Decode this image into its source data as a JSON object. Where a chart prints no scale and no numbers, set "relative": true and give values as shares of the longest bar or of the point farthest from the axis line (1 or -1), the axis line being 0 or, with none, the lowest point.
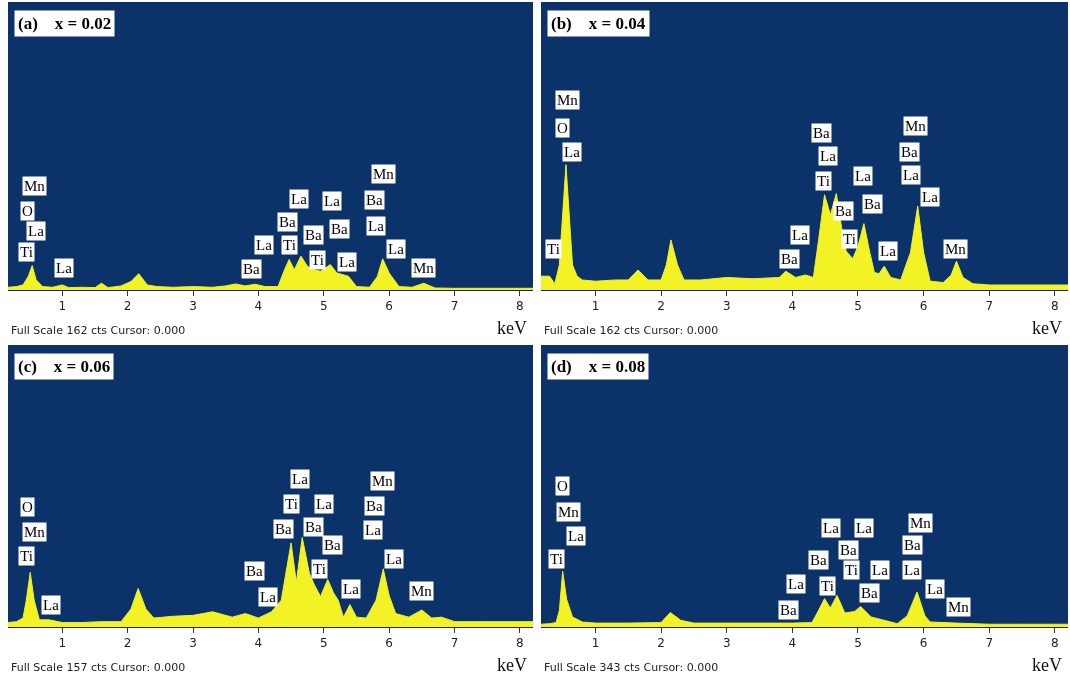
{
  "chart_data": [
    {
      "type": "area",
      "title": "(a)    x = 0.02",
      "xlabel": "keV",
      "relative": true,
      "color": "#f2f224",
      "grid": false,
      "xlim": [
        0.17,
        8.2
      ],
      "xticks": [
        1,
        2,
        3,
        4,
        5,
        6,
        7,
        8
      ],
      "x": [
        0.17,
        0.3,
        0.4,
        0.48,
        0.54,
        0.6,
        0.7,
        0.85,
        1.0,
        1.1,
        1.3,
        1.5,
        1.6,
        1.7,
        1.9,
        2.05,
        2.17,
        2.3,
        2.45,
        2.7,
        3.0,
        3.3,
        3.5,
        3.65,
        3.8,
        3.95,
        4.1,
        4.3,
        4.4,
        4.47,
        4.55,
        4.65,
        4.75,
        4.85,
        4.95,
        5.1,
        5.2,
        5.3,
        5.38,
        5.5,
        5.7,
        5.82,
        5.9,
        6.0,
        6.15,
        6.35,
        6.53,
        6.7,
        7.0,
        7.5,
        8.0,
        8.2
      ],
      "values": [
        0.08,
        0.1,
        0.15,
        0.4,
        0.72,
        0.3,
        0.1,
        0.08,
        0.15,
        0.07,
        0.08,
        0.07,
        0.2,
        0.07,
        0.12,
        0.25,
        0.48,
        0.15,
        0.1,
        0.08,
        0.1,
        0.08,
        0.12,
        0.18,
        0.12,
        0.17,
        0.1,
        0.1,
        0.6,
        0.9,
        0.6,
        1.0,
        0.7,
        0.6,
        0.55,
        0.75,
        0.5,
        0.45,
        0.4,
        0.1,
        0.08,
        0.4,
        0.92,
        0.5,
        0.1,
        0.08,
        0.2,
        0.06,
        0.05,
        0.05,
        0.05,
        0.05
      ],
      "annotations": [
        "Mn",
        "O",
        "La",
        "Ti",
        "La",
        "Ba",
        "La",
        "Ti",
        "Ba",
        "La",
        "La",
        "Ba",
        "Ba",
        "Ti",
        "La",
        "Mn",
        "Ba",
        "La",
        "La",
        "Mn",
        "Full Scale 162 cts Cursor: 0.000"
      ]
    },
    {
      "type": "area",
      "title": "(b)    x = 0.04",
      "xlabel": "keV",
      "relative": true,
      "color": "#f2f224",
      "grid": false,
      "xlim": [
        0.17,
        8.2
      ],
      "xticks": [
        1,
        2,
        3,
        4,
        5,
        6,
        7,
        8
      ],
      "x": [
        0.17,
        0.3,
        0.38,
        0.45,
        0.5,
        0.55,
        0.6,
        0.65,
        0.72,
        0.8,
        1.0,
        1.3,
        1.5,
        1.65,
        1.8,
        2.0,
        2.08,
        2.15,
        2.25,
        2.35,
        2.6,
        3.0,
        3.4,
        3.8,
        3.9,
        4.05,
        4.2,
        4.32,
        4.4,
        4.49,
        4.58,
        4.67,
        4.75,
        4.82,
        4.92,
        5.0,
        5.09,
        5.18,
        5.25,
        5.32,
        5.4,
        5.5,
        5.65,
        5.8,
        5.91,
        6.0,
        6.1,
        6.3,
        6.42,
        6.5,
        6.6,
        6.75,
        7.0,
        7.5,
        8.0,
        8.2
      ],
      "values": [
        0.11,
        0.11,
        0.05,
        0.2,
        0.6,
        1.0,
        0.6,
        0.2,
        0.11,
        0.08,
        0.07,
        0.08,
        0.08,
        0.16,
        0.08,
        0.08,
        0.2,
        0.4,
        0.2,
        0.08,
        0.08,
        0.1,
        0.09,
        0.1,
        0.15,
        0.1,
        0.12,
        0.1,
        0.4,
        0.76,
        0.6,
        0.77,
        0.5,
        0.31,
        0.25,
        0.35,
        0.53,
        0.3,
        0.14,
        0.13,
        0.19,
        0.1,
        0.08,
        0.3,
        0.67,
        0.3,
        0.07,
        0.06,
        0.12,
        0.23,
        0.1,
        0.05,
        0.04,
        0.04,
        0.04,
        0.04
      ],
      "annotations": [
        "Mn",
        "O",
        "La",
        "Ti",
        "Ba",
        "La",
        "Ti",
        "La",
        "Ba",
        "Ba",
        "Ti",
        "La",
        "Ba",
        "La",
        "Mn",
        "Ba",
        "La",
        "La",
        "Mn",
        "Full Scale 162 cts Cursor: 0.000"
      ]
    },
    {
      "type": "area",
      "title": "(c)    x = 0.06",
      "xlabel": "keV",
      "relative": true,
      "color": "#f2f224",
      "grid": false,
      "xlim": [
        0.17,
        8.2
      ],
      "xticks": [
        1,
        2,
        3,
        4,
        5,
        6,
        7,
        8
      ],
      "x": [
        0.17,
        0.3,
        0.4,
        0.45,
        0.51,
        0.57,
        0.65,
        0.8,
        1.0,
        1.3,
        1.6,
        1.9,
        2.05,
        2.16,
        2.28,
        2.4,
        2.7,
        3.0,
        3.3,
        3.6,
        3.8,
        4.0,
        4.2,
        4.35,
        4.5,
        4.58,
        4.67,
        4.78,
        4.85,
        4.95,
        5.06,
        5.15,
        5.22,
        5.3,
        5.4,
        5.5,
        5.65,
        5.8,
        5.91,
        6.0,
        6.1,
        6.3,
        6.5,
        6.65,
        6.8,
        7.0,
        7.5,
        8.0,
        8.2
      ],
      "values": [
        0.05,
        0.06,
        0.1,
        0.3,
        0.61,
        0.3,
        0.08,
        0.08,
        0.05,
        0.05,
        0.06,
        0.06,
        0.2,
        0.43,
        0.2,
        0.1,
        0.12,
        0.13,
        0.17,
        0.11,
        0.15,
        0.1,
        0.17,
        0.3,
        0.94,
        0.5,
        1.0,
        0.6,
        0.48,
        0.34,
        0.53,
        0.38,
        0.3,
        0.11,
        0.25,
        0.11,
        0.1,
        0.3,
        0.65,
        0.35,
        0.15,
        0.11,
        0.19,
        0.1,
        0.11,
        0.06,
        0.06,
        0.06,
        0.06
      ],
      "annotations": [
        "O",
        "Mn",
        "Ti",
        "La",
        "Ba",
        "La",
        "Ba",
        "Ti",
        "La",
        "Ba",
        "La",
        "Ba",
        "Ti",
        "La",
        "Mn",
        "Ba",
        "La",
        "La",
        "Mn",
        "Full Scale 157 cts Cursor: 0.000"
      ]
    },
    {
      "type": "area",
      "title": "(d)    x = 0.08",
      "xlabel": "keV",
      "relative": true,
      "color": "#f2f224",
      "grid": false,
      "xlim": [
        0.17,
        8.2
      ],
      "xticks": [
        1,
        2,
        3,
        4,
        5,
        6,
        7,
        8
      ],
      "x": [
        0.17,
        0.3,
        0.4,
        0.45,
        0.5,
        0.56,
        0.65,
        0.8,
        1.0,
        1.5,
        2.0,
        2.14,
        2.3,
        2.5,
        3.0,
        3.5,
        4.0,
        4.3,
        4.4,
        4.49,
        4.58,
        4.68,
        4.8,
        4.95,
        5.04,
        5.2,
        5.4,
        5.6,
        5.75,
        5.9,
        6.02,
        6.1,
        6.5,
        7.0,
        7.5,
        8.0,
        8.2
      ],
      "values": [
        0.05,
        0.06,
        0.08,
        0.3,
        1.0,
        0.5,
        0.18,
        0.09,
        0.07,
        0.07,
        0.08,
        0.26,
        0.12,
        0.07,
        0.07,
        0.07,
        0.07,
        0.08,
        0.3,
        0.51,
        0.34,
        0.57,
        0.25,
        0.28,
        0.37,
        0.18,
        0.12,
        0.06,
        0.2,
        0.63,
        0.2,
        0.09,
        0.07,
        0.05,
        0.05,
        0.05,
        0.05
      ],
      "annotations": [
        "O",
        "Mn",
        "La",
        "Ti",
        "Ba",
        "La",
        "Ti",
        "Ba",
        "La",
        "La",
        "Ba",
        "Ti",
        "Ba",
        "La",
        "La",
        "Mn",
        "Ba",
        "La",
        "Mn",
        "Full Scale 343 cts Cursor: 0.000"
      ]
    }
  ]
}
